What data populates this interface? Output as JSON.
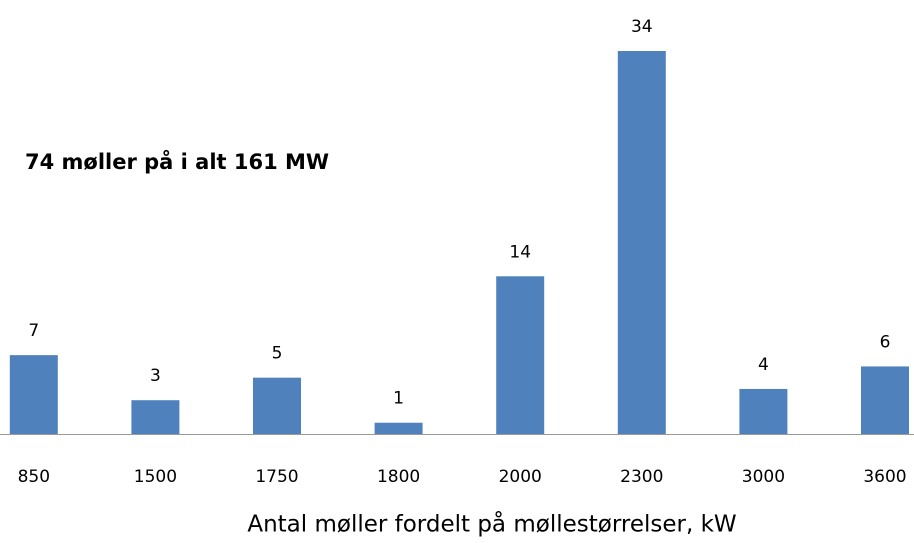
{
  "chart_data": {
    "type": "bar",
    "annotation": "74 møller på i alt 161 MW",
    "x_label": "Antal møller fordelt på møllestørrelser, kW",
    "categories": [
      "850",
      "1500",
      "1750",
      "1800",
      "2000",
      "2300",
      "3000",
      "3600"
    ],
    "values": [
      7,
      3,
      5,
      1,
      14,
      34,
      4,
      6
    ],
    "color": "#4f81bd"
  }
}
